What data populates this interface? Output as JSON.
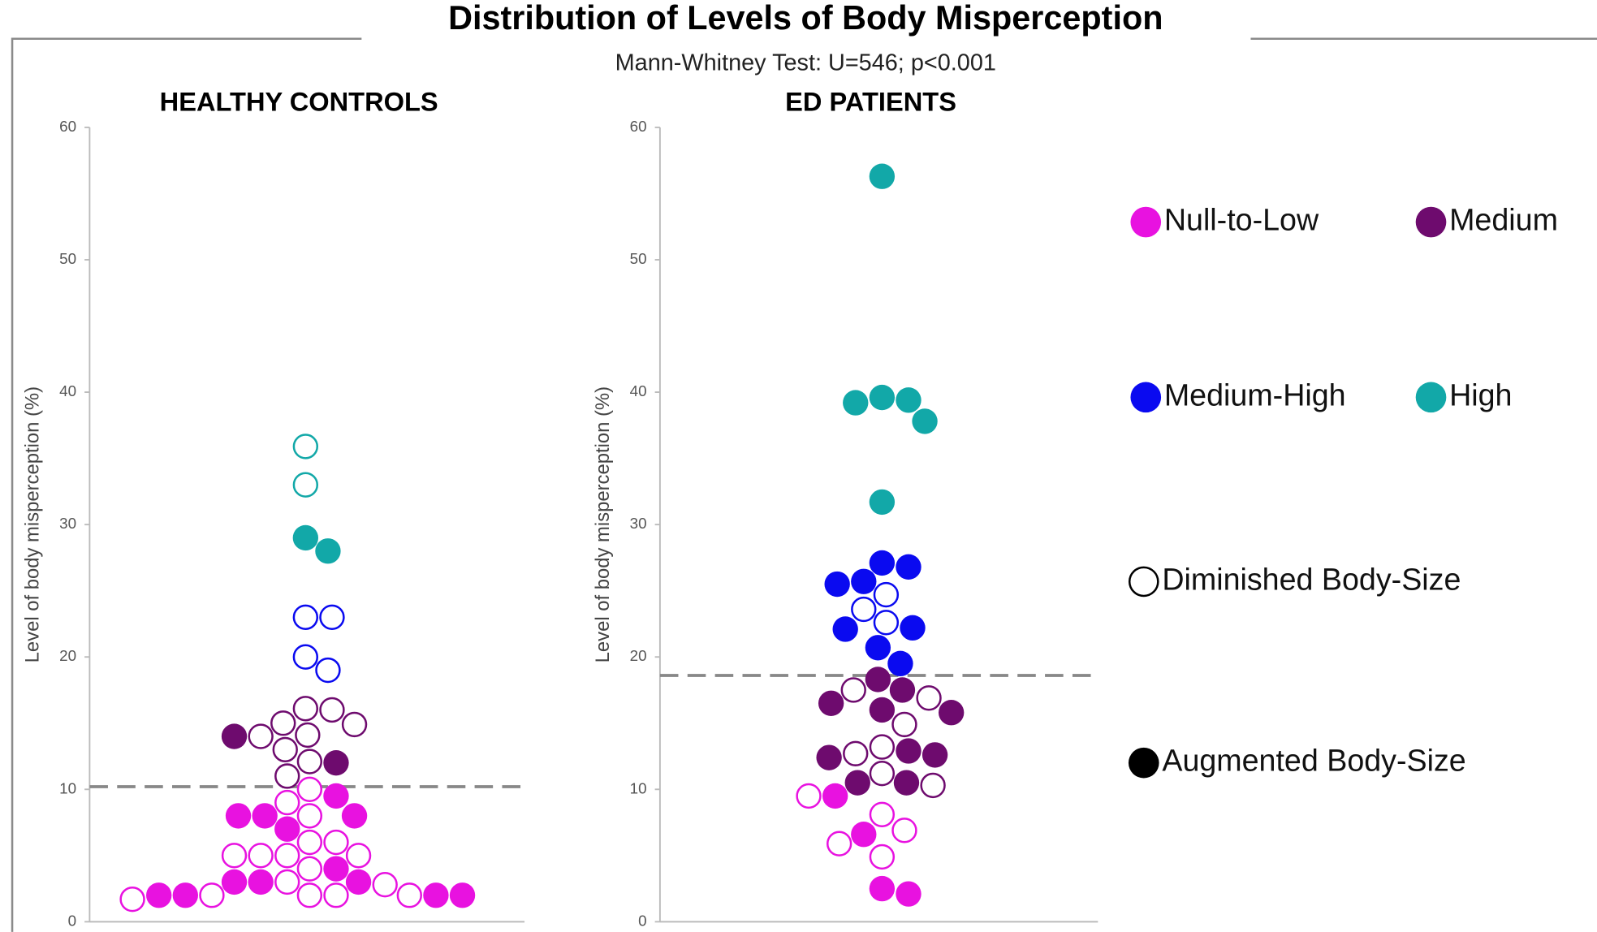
{
  "title": "Distribution of Levels of Body Misperception",
  "subtitle": "Mann-Whitney Test: U=546; p<0.001",
  "legend": {
    "levels": [
      {
        "name": "Null-to-Low",
        "color": "#e812e0"
      },
      {
        "name": "Medium",
        "color": "#6e0b6e"
      },
      {
        "name": "Medium-High",
        "color": "#0a0af0"
      },
      {
        "name": "High",
        "color": "#12a8a8"
      }
    ],
    "styles": [
      {
        "name": "Diminished Body-Size",
        "filled": false
      },
      {
        "name": "Augmented Body-Size",
        "filled": true
      }
    ]
  },
  "chart_data": [
    {
      "type": "scatter",
      "title": "HEALTHY CONTROLS",
      "y_label": "Level of body misperception (%)",
      "ylim": [
        0,
        60
      ],
      "yticks": [
        0,
        10,
        20,
        30,
        40,
        50,
        60
      ],
      "reference_line": 10.2,
      "series": [
        {
          "level": "High",
          "style": "Diminished Body-Size",
          "values": [
            35.9,
            33.0
          ]
        },
        {
          "level": "High",
          "style": "Augmented Body-Size",
          "values": [
            28.0,
            29.0
          ]
        },
        {
          "level": "Medium-High",
          "style": "Diminished Body-Size",
          "values": [
            23.0,
            23.0,
            20.0,
            19.0
          ]
        },
        {
          "level": "Medium",
          "style": "Diminished Body-Size",
          "values": [
            16.1,
            16.0,
            15.0,
            14.9,
            14.1,
            14.0,
            13.0,
            12.1,
            11.0
          ]
        },
        {
          "level": "Medium",
          "style": "Augmented Body-Size",
          "values": [
            14.0,
            12.0
          ]
        },
        {
          "level": "Null-to-Low",
          "style": "Diminished Body-Size",
          "values": [
            10.0,
            9.0,
            8.0,
            6.0,
            6.0,
            5.0,
            5.0,
            5.0,
            5.0,
            4.0,
            3.0,
            2.8,
            2.0,
            2.0,
            1.7,
            2.0,
            2.0
          ]
        },
        {
          "level": "Null-to-Low",
          "style": "Augmented Body-Size",
          "values": [
            9.5,
            8.0,
            8.0,
            8.0,
            7.0,
            4.0,
            3.0,
            3.0,
            3.0,
            2.0,
            2.0,
            2.0,
            2.0
          ]
        }
      ]
    },
    {
      "type": "scatter",
      "title": "ED PATIENTS",
      "y_label": "Level of body misperception (%)",
      "ylim": [
        0,
        60
      ],
      "yticks": [
        0,
        10,
        20,
        30,
        40,
        50,
        60
      ],
      "reference_line": 18.6,
      "series": [
        {
          "level": "High",
          "style": "Augmented Body-Size",
          "values": [
            56.3,
            39.4,
            39.6,
            39.2,
            37.8,
            31.7
          ]
        },
        {
          "level": "Medium-High",
          "style": "Augmented Body-Size",
          "values": [
            27.1,
            26.8,
            25.5,
            25.7,
            22.1,
            22.2,
            20.7,
            19.5
          ]
        },
        {
          "level": "Medium-High",
          "style": "Diminished Body-Size",
          "values": [
            24.7,
            23.6,
            22.6
          ]
        },
        {
          "level": "Medium",
          "style": "Augmented Body-Size",
          "values": [
            18.3,
            17.5,
            16.5,
            16.0,
            15.8,
            12.6,
            12.4,
            12.9,
            10.5,
            10.5
          ]
        },
        {
          "level": "Medium",
          "style": "Diminished Body-Size",
          "values": [
            17.5,
            16.9,
            14.9,
            13.2,
            12.7,
            10.3,
            11.2
          ]
        },
        {
          "level": "Null-to-Low",
          "style": "Augmented Body-Size",
          "values": [
            9.5,
            6.6,
            2.5,
            2.1
          ]
        },
        {
          "level": "Null-to-Low",
          "style": "Diminished Body-Size",
          "values": [
            9.5,
            8.1,
            6.9,
            5.9,
            4.9
          ]
        }
      ]
    }
  ]
}
